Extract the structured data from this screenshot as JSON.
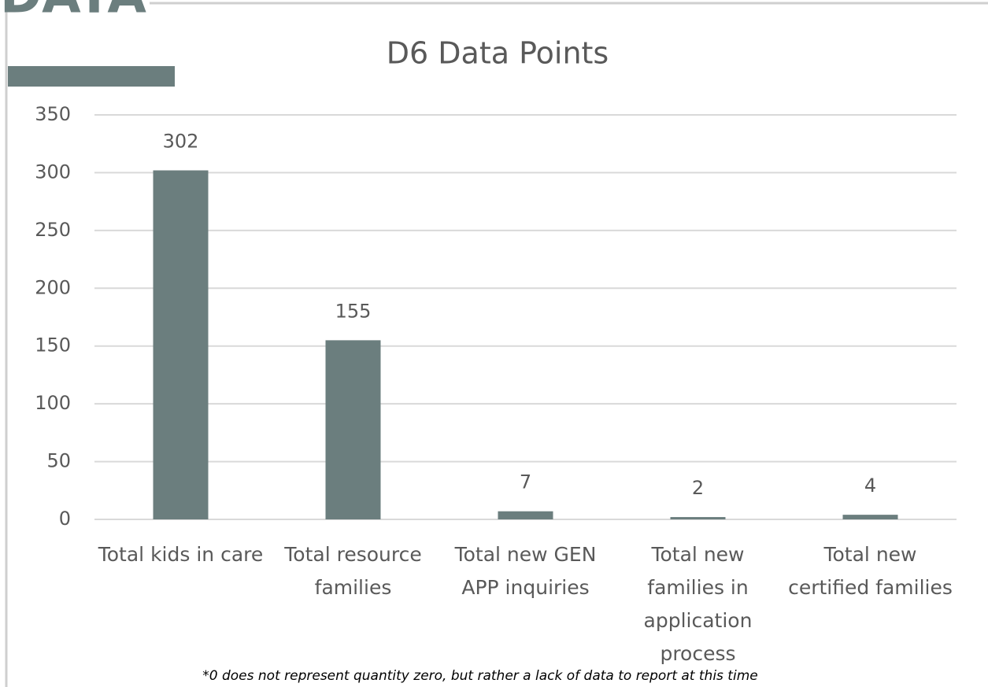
{
  "header": "DATA",
  "chart_data": {
    "type": "bar",
    "title": "D6 Data Points",
    "categories": [
      "Total kids in care",
      "Total resource families",
      "Total new GEN APP inquiries",
      "Total new families in application process",
      "Total new certified families"
    ],
    "values": [
      302,
      155,
      7,
      2,
      4
    ],
    "color": "#6b7e7e",
    "ylim": [
      0,
      350
    ],
    "yticks": [
      0,
      50,
      100,
      150,
      200,
      250,
      300,
      350
    ],
    "grid": true,
    "note": "*0 does not represent quantity zero, but rather a lack of data to report at this time"
  }
}
